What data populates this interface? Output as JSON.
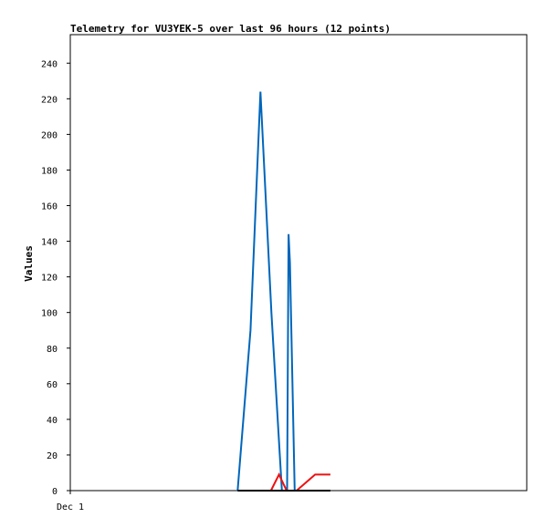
{
  "chart_data": {
    "type": "line",
    "title": "Telemetry for VU3YEK-5 over last 96 hours (12 points)",
    "xlabel": "",
    "ylabel": "Values",
    "ylim": [
      0,
      256
    ],
    "yticks": [
      0,
      20,
      40,
      60,
      80,
      100,
      120,
      140,
      160,
      180,
      200,
      220,
      240
    ],
    "xlim": [
      0,
      96
    ],
    "x_tick_labels": [
      {
        "x": 0,
        "label": "Dec 1"
      }
    ],
    "x_unit": "hours",
    "grid": false,
    "legend": "none",
    "series": [
      {
        "color": "#0066bb",
        "x": [
          35.2,
          37.9,
          40.0,
          42.3,
          44.5,
          45.6,
          45.9,
          46.2,
          47.2
        ],
        "y": [
          0,
          90,
          224,
          100,
          0,
          0,
          144,
          128,
          0
        ]
      },
      {
        "color": "#ee1111",
        "x": [
          42.2,
          43.9,
          45.5,
          47.6,
          51.5,
          54.7
        ],
        "y": [
          0,
          9,
          0,
          0,
          9,
          9
        ]
      },
      {
        "color": "#000000",
        "x": [
          35.2,
          54.7
        ],
        "y": [
          0,
          0
        ]
      }
    ]
  }
}
